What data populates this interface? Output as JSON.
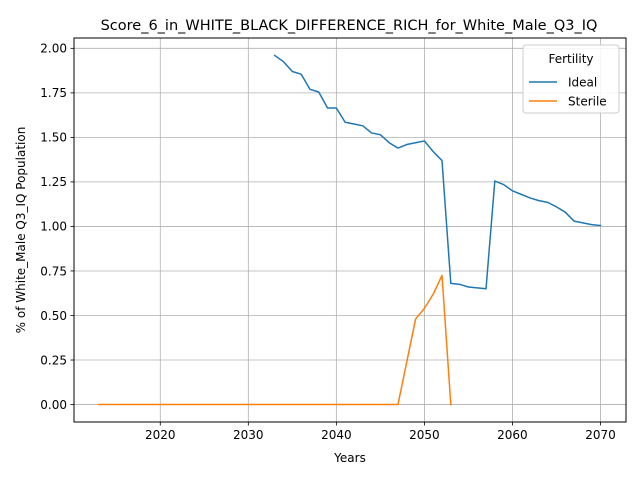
{
  "chart_data": {
    "type": "line",
    "title": "Score_6_in_WHITE_BLACK_DIFFERENCE_RICH_for_White_Male_Q3_IQ",
    "xlabel": "Years",
    "ylabel": "% of White_Male Q3_IQ Population",
    "xlim": [
      2010.2,
      2072.9
    ],
    "ylim": [
      -0.098,
      2.058
    ],
    "xticks": [
      2020,
      2030,
      2040,
      2050,
      2060,
      2070
    ],
    "yticks": [
      0.0,
      0.25,
      0.5,
      0.75,
      1.0,
      1.25,
      1.5,
      1.75,
      2.0
    ],
    "ytick_labels": [
      "0.00",
      "0.25",
      "0.50",
      "0.75",
      "1.00",
      "1.25",
      "1.50",
      "1.75",
      "2.00"
    ],
    "grid": true,
    "legend": {
      "title": "Fertility",
      "placement": "top-right"
    },
    "series": [
      {
        "name": "Ideal",
        "color": "#1f77b4",
        "points": [
          [
            2033,
            1.96
          ],
          [
            2034,
            1.925
          ],
          [
            2035,
            1.87
          ],
          [
            2036,
            1.855
          ],
          [
            2037,
            1.77
          ],
          [
            2038,
            1.755
          ],
          [
            2039,
            1.665
          ],
          [
            2040,
            1.665
          ],
          [
            2041,
            1.585
          ],
          [
            2042,
            1.575
          ],
          [
            2043,
            1.565
          ],
          [
            2044,
            1.525
          ],
          [
            2045,
            1.515
          ],
          [
            2046,
            1.47
          ],
          [
            2047,
            1.44
          ],
          [
            2048,
            1.46
          ],
          [
            2049,
            1.47
          ],
          [
            2050,
            1.48
          ],
          [
            2051,
            1.42
          ],
          [
            2052,
            1.37
          ],
          [
            2053,
            0.68
          ],
          [
            2054,
            0.675
          ],
          [
            2055,
            0.66
          ],
          [
            2056,
            0.655
          ],
          [
            2057,
            0.65
          ],
          [
            2058,
            1.255
          ],
          [
            2059,
            1.235
          ],
          [
            2060,
            1.2
          ],
          [
            2061,
            1.18
          ],
          [
            2062,
            1.16
          ],
          [
            2063,
            1.145
          ],
          [
            2064,
            1.135
          ],
          [
            2065,
            1.11
          ],
          [
            2066,
            1.08
          ],
          [
            2067,
            1.03
          ],
          [
            2068,
            1.02
          ],
          [
            2069,
            1.01
          ],
          [
            2070,
            1.005
          ]
        ]
      },
      {
        "name": "Sterile",
        "color": "#ff7f0e",
        "points": [
          [
            2013,
            0.0
          ],
          [
            2014,
            0.0
          ],
          [
            2015,
            0.0
          ],
          [
            2016,
            0.0
          ],
          [
            2017,
            0.0
          ],
          [
            2018,
            0.0
          ],
          [
            2019,
            0.0
          ],
          [
            2020,
            0.0
          ],
          [
            2021,
            0.0
          ],
          [
            2022,
            0.0
          ],
          [
            2023,
            0.0
          ],
          [
            2024,
            0.0
          ],
          [
            2025,
            0.0
          ],
          [
            2026,
            0.0
          ],
          [
            2027,
            0.0
          ],
          [
            2028,
            0.0
          ],
          [
            2029,
            0.0
          ],
          [
            2030,
            0.0
          ],
          [
            2031,
            0.0
          ],
          [
            2032,
            0.0
          ],
          [
            2033,
            0.0
          ],
          [
            2034,
            0.0
          ],
          [
            2035,
            0.0
          ],
          [
            2036,
            0.0
          ],
          [
            2037,
            0.0
          ],
          [
            2038,
            0.0
          ],
          [
            2039,
            0.0
          ],
          [
            2040,
            0.0
          ],
          [
            2041,
            0.0
          ],
          [
            2042,
            0.0
          ],
          [
            2043,
            0.0
          ],
          [
            2044,
            0.0
          ],
          [
            2045,
            0.0
          ],
          [
            2046,
            0.0
          ],
          [
            2047,
            0.0
          ],
          [
            2048,
            0.24
          ],
          [
            2049,
            0.48
          ],
          [
            2050,
            0.54
          ],
          [
            2051,
            0.62
          ],
          [
            2052,
            0.725
          ],
          [
            2053,
            0.0
          ]
        ]
      }
    ]
  }
}
